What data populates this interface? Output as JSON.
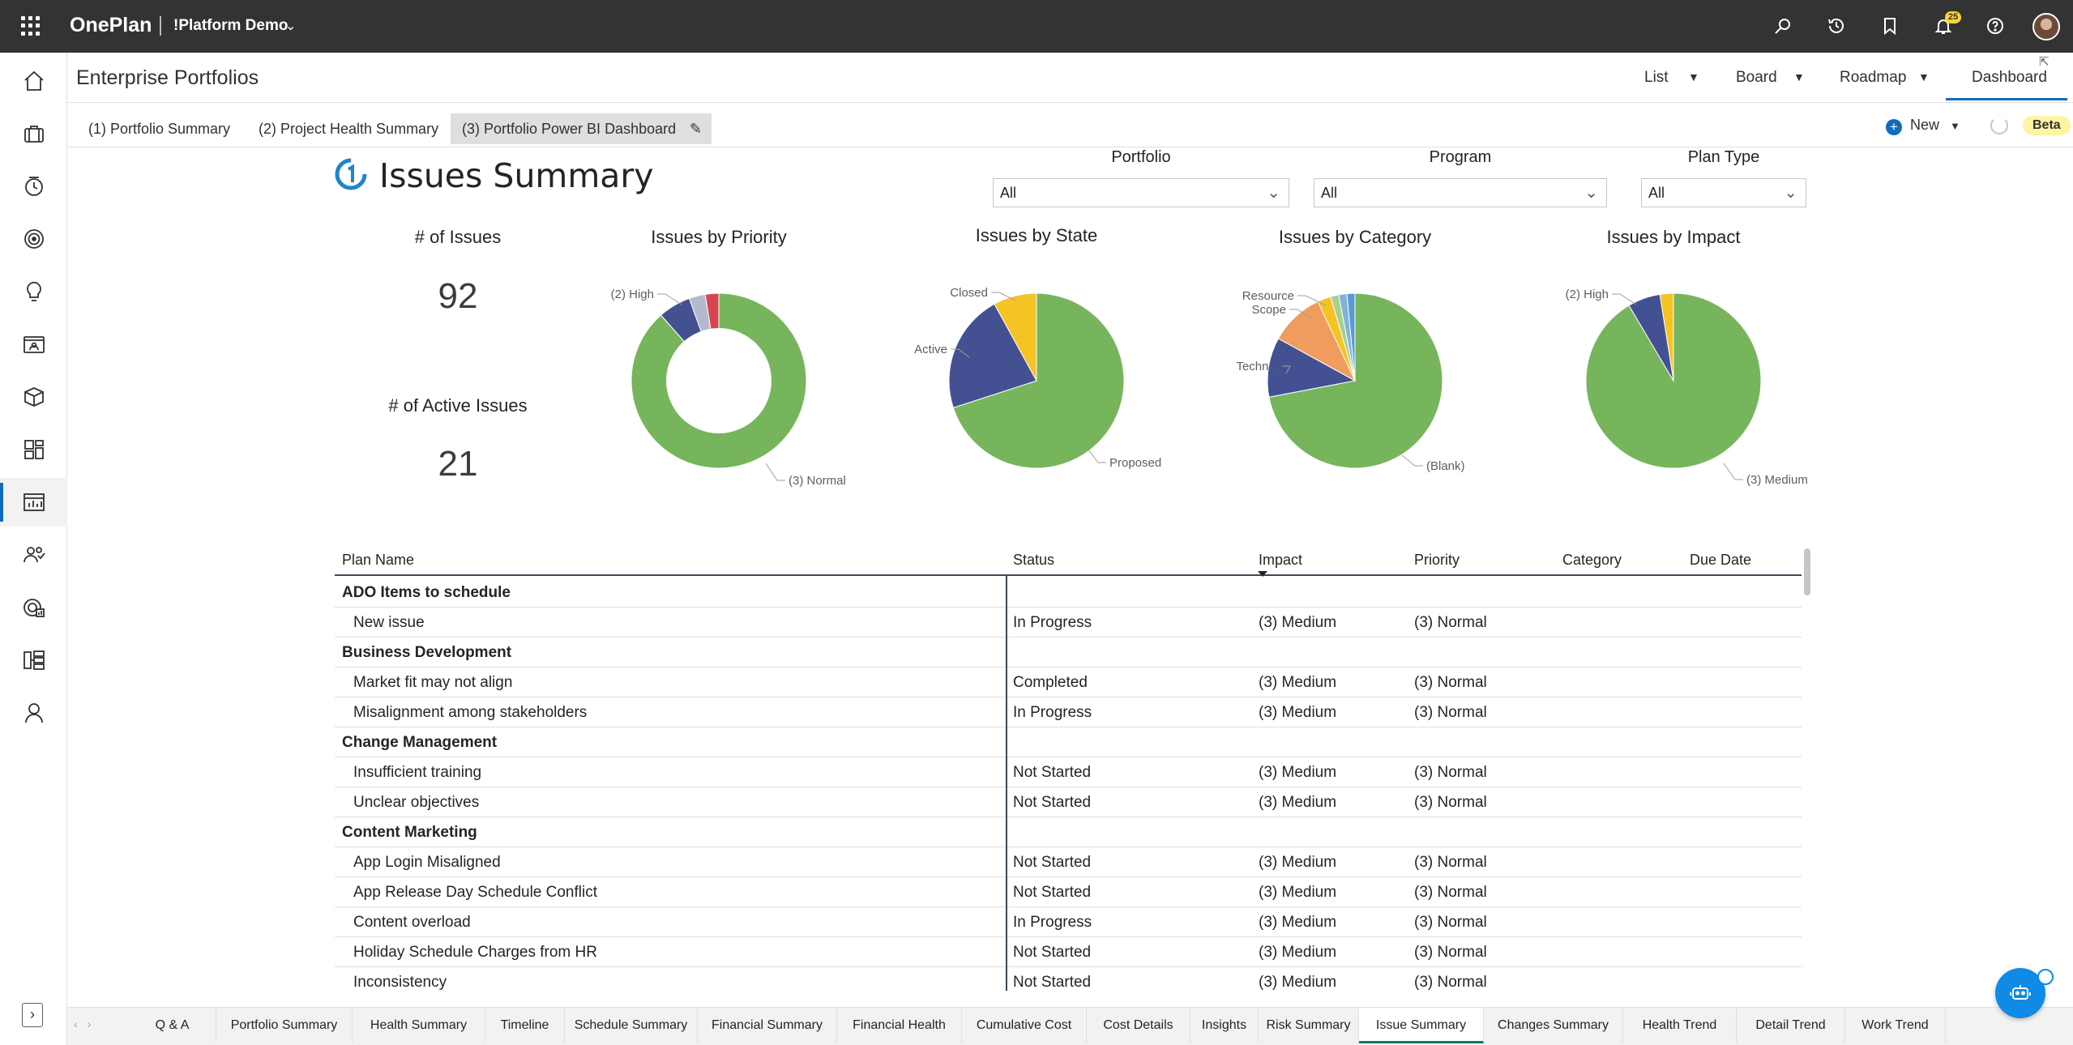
{
  "app": {
    "name": "OnePlan",
    "workspace": "!Platform Demo",
    "notification_count": "25"
  },
  "header": {
    "title": "Enterprise Portfolios",
    "views": [
      {
        "label": "List"
      },
      {
        "label": "Board"
      },
      {
        "label": "Roadmap"
      },
      {
        "label": "Dashboard"
      }
    ]
  },
  "subtabs": [
    {
      "label": "(1) Portfolio Summary"
    },
    {
      "label": "(2) Project Health Summary"
    },
    {
      "label": "(3) Portfolio Power BI Dashboard"
    }
  ],
  "toolbar": {
    "new_label": "New",
    "beta_label": "Beta"
  },
  "report": {
    "title": "Issues Summary",
    "slicers": [
      {
        "label": "Portfolio",
        "value": "All"
      },
      {
        "label": "Program",
        "value": "All"
      },
      {
        "label": "Plan Type",
        "value": "All"
      }
    ],
    "cards": [
      {
        "label": "# of Issues",
        "value": "92"
      },
      {
        "label": "# of Active Issues",
        "value": "21"
      }
    ]
  },
  "chart_data": [
    {
      "type": "pie",
      "title": "Issues by Priority",
      "donut": true,
      "categories": [
        "(3) Normal",
        "(2) High",
        "",
        ""
      ],
      "values": [
        88.5,
        6,
        3,
        2.5
      ],
      "colors": [
        "#76b55c",
        "#435192",
        "#b6b9cc",
        "#d64550"
      ],
      "labels_shown": [
        "(2) High",
        "(3) Normal"
      ]
    },
    {
      "type": "pie",
      "title": "Issues by State",
      "categories": [
        "Proposed",
        "Active",
        "Closed"
      ],
      "values": [
        70,
        22,
        8
      ],
      "colors": [
        "#76b55c",
        "#435192",
        "#f6c325"
      ],
      "labels_shown": [
        "Closed",
        "Active",
        "Proposed"
      ]
    },
    {
      "type": "pie",
      "title": "Issues by Category",
      "categories": [
        "(Blank)",
        "Techn...",
        "Scope",
        "Resource",
        "",
        "",
        ""
      ],
      "values": [
        72,
        11,
        10,
        2.5,
        1.5,
        1.5,
        1.5
      ],
      "colors": [
        "#76b55c",
        "#435192",
        "#ef9c5e",
        "#f6c325",
        "#a9d18e",
        "#7fb5d8",
        "#5b9bd5"
      ],
      "labels_shown": [
        "Resource",
        "Scope",
        "Techn...",
        "(Blank)"
      ]
    },
    {
      "type": "pie",
      "title": "Issues by Impact",
      "categories": [
        "(3) Medium",
        "(2) High",
        ""
      ],
      "values": [
        91.5,
        6,
        2.5
      ],
      "colors": [
        "#76b55c",
        "#435192",
        "#f6c325"
      ],
      "labels_shown": [
        "(2) High",
        "(3) Medium"
      ]
    }
  ],
  "table": {
    "columns": [
      "Plan Name",
      "Status",
      "Impact",
      "Priority",
      "Category",
      "Due Date"
    ],
    "rows": [
      {
        "group": true,
        "name": "ADO Items to schedule"
      },
      {
        "name": "New issue",
        "status": "In Progress",
        "impact": "(3) Medium",
        "priority": "(3) Normal"
      },
      {
        "group": true,
        "name": "Business Development"
      },
      {
        "name": "Market fit may not align",
        "status": "Completed",
        "impact": "(3) Medium",
        "priority": "(3) Normal"
      },
      {
        "name": "Misalignment among stakeholders",
        "status": "In Progress",
        "impact": "(3) Medium",
        "priority": "(3) Normal"
      },
      {
        "group": true,
        "name": "Change Management"
      },
      {
        "name": "Insufficient training",
        "status": "Not Started",
        "impact": "(3) Medium",
        "priority": "(3) Normal"
      },
      {
        "name": "Unclear objectives",
        "status": "Not Started",
        "impact": "(3) Medium",
        "priority": "(3) Normal"
      },
      {
        "group": true,
        "name": "Content Marketing"
      },
      {
        "name": "App Login Misaligned",
        "status": "Not Started",
        "impact": "(3) Medium",
        "priority": "(3) Normal"
      },
      {
        "name": "App Release Day Schedule Conflict",
        "status": "Not Started",
        "impact": "(3) Medium",
        "priority": "(3) Normal"
      },
      {
        "name": "Content overload",
        "status": "In Progress",
        "impact": "(3) Medium",
        "priority": "(3) Normal"
      },
      {
        "name": "Holiday Schedule Charges from HR",
        "status": "Not Started",
        "impact": "(3) Medium",
        "priority": "(3) Normal"
      },
      {
        "name": "Inconsistency",
        "status": "Not Started",
        "impact": "(3) Medium",
        "priority": "(3) Normal"
      }
    ]
  },
  "bottom_tabs": [
    {
      "label": "Q & A"
    },
    {
      "label": "Portfolio Summary"
    },
    {
      "label": "Health Summary"
    },
    {
      "label": "Timeline"
    },
    {
      "label": "Schedule Summary"
    },
    {
      "label": "Financial Summary"
    },
    {
      "label": "Financial Health"
    },
    {
      "label": "Cumulative Cost"
    },
    {
      "label": "Cost Details"
    },
    {
      "label": "Insights"
    },
    {
      "label": "Risk Summary"
    },
    {
      "label": "Issue Summary",
      "active": true
    },
    {
      "label": "Changes Summary"
    },
    {
      "label": "Health Trend"
    },
    {
      "label": "Detail Trend"
    },
    {
      "label": "Work Trend"
    }
  ],
  "icons": {
    "left_nav": [
      "home-icon",
      "briefcase-icon",
      "history-icon",
      "target-icon",
      "lightbulb-icon",
      "contact-card-icon",
      "box-icon",
      "layout-icon",
      "dashboard-icon",
      "people-icon",
      "report-icon",
      "hierarchy-icon",
      "person-icon"
    ],
    "top_right": [
      "search-icon",
      "history-icon",
      "bookmark-icon",
      "bell-icon",
      "help-icon"
    ]
  },
  "colors": {
    "accent": "#0f6cbd",
    "topbar": "#333333",
    "active_tab_underline": "#117865"
  }
}
